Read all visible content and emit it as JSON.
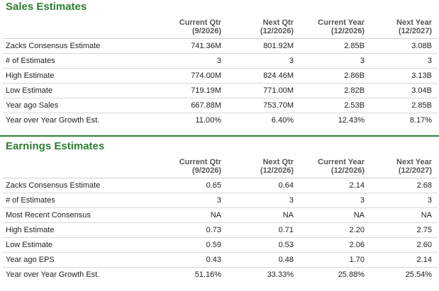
{
  "sales": {
    "title": "Sales Estimates",
    "headers": [
      {
        "label": "Current Qtr",
        "sub": "(9/2026)"
      },
      {
        "label": "Next Qtr",
        "sub": "(12/2026)"
      },
      {
        "label": "Current Year",
        "sub": "(12/2026)"
      },
      {
        "label": "Next Year",
        "sub": "(12/2027)"
      }
    ],
    "rows": [
      {
        "label": "Zacks Consensus Estimate",
        "values": [
          "741.36M",
          "801.92M",
          "2.85B",
          "3.08B"
        ]
      },
      {
        "label": "# of Estimates",
        "values": [
          "3",
          "3",
          "3",
          "3"
        ]
      },
      {
        "label": "High Estimate",
        "values": [
          "774.00M",
          "824.46M",
          "2.86B",
          "3.13B"
        ]
      },
      {
        "label": "Low Estimate",
        "values": [
          "719.19M",
          "771.00M",
          "2.82B",
          "3.04B"
        ]
      },
      {
        "label": "Year ago Sales",
        "values": [
          "667.88M",
          "753.70M",
          "2.53B",
          "2.85B"
        ]
      },
      {
        "label": "Year over Year Growth Est.",
        "values": [
          "11.00%",
          "6.40%",
          "12.43%",
          "8.17%"
        ]
      }
    ]
  },
  "earnings": {
    "title": "Earnings Estimates",
    "headers": [
      {
        "label": "Current Qtr",
        "sub": "(9/2026)"
      },
      {
        "label": "Next Qtr",
        "sub": "(12/2026)"
      },
      {
        "label": "Current Year",
        "sub": "(12/2026)"
      },
      {
        "label": "Next Year",
        "sub": "(12/2027)"
      }
    ],
    "rows": [
      {
        "label": "Zacks Consensus Estimate",
        "values": [
          "0.65",
          "0.64",
          "2.14",
          "2.68"
        ]
      },
      {
        "label": "# of Estimates",
        "values": [
          "3",
          "3",
          "3",
          "3"
        ]
      },
      {
        "label": "Most Recent Consensus",
        "values": [
          "NA",
          "NA",
          "NA",
          "NA"
        ]
      },
      {
        "label": "High Estimate",
        "values": [
          "0.73",
          "0.71",
          "2.20",
          "2.75"
        ]
      },
      {
        "label": "Low Estimate",
        "values": [
          "0.59",
          "0.53",
          "2.06",
          "2.60"
        ]
      },
      {
        "label": "Year ago EPS",
        "values": [
          "0.43",
          "0.48",
          "1.70",
          "2.14"
        ]
      },
      {
        "label": "Year over Year Growth Est.",
        "values": [
          "51.16%",
          "33.33%",
          "25.88%",
          "25.54%"
        ]
      }
    ]
  },
  "colors": {
    "accent": "#2e7d32"
  }
}
